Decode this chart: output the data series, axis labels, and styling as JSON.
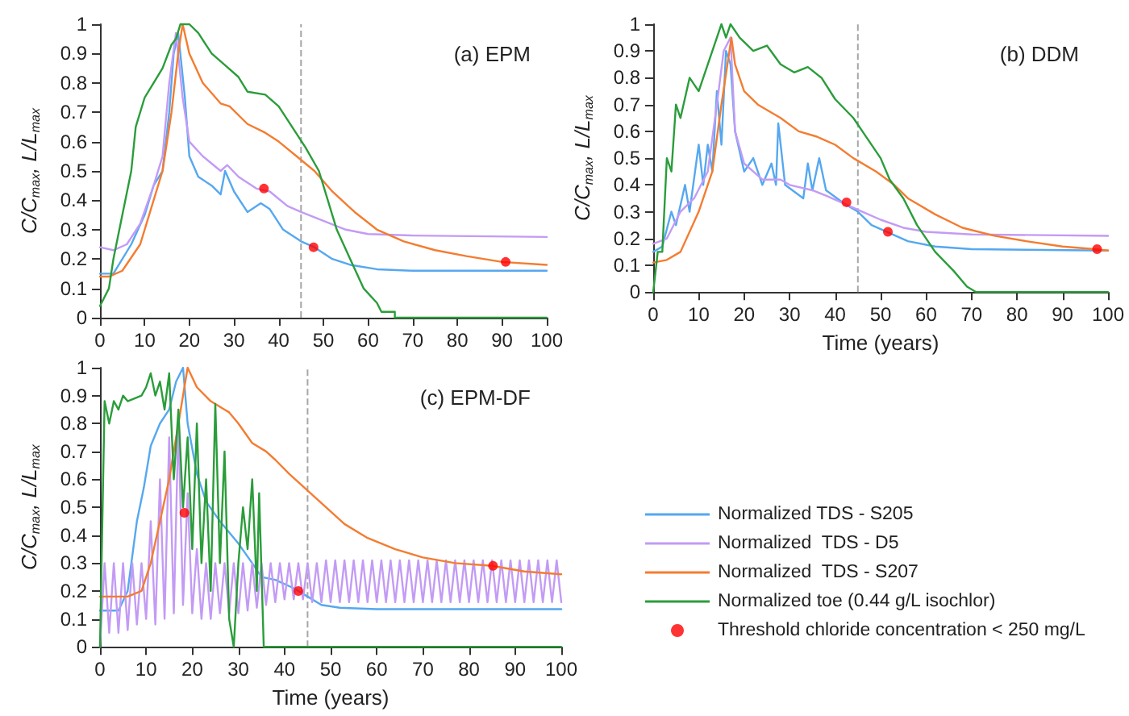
{
  "chart_data": [
    {
      "type": "line",
      "title": "(a) EPM",
      "ylabel": "C/C$_{max}$, L/L$_{max}$",
      "xlim": [
        0,
        100
      ],
      "xticks": [
        0,
        10,
        20,
        30,
        40,
        50,
        60,
        70,
        80,
        90,
        100
      ],
      "ylim": [
        0,
        1
      ],
      "yticks": [
        0,
        0.1,
        0.2,
        0.3,
        0.4,
        0.5,
        0.6,
        0.7,
        0.8,
        0.9,
        1
      ],
      "grid": false,
      "marker": "none",
      "ref_lines": [
        {
          "axis": "x",
          "value": 45,
          "color": "#a6a6a6",
          "line_style": "dashed"
        }
      ],
      "series": [
        {
          "color": "#55a8f0",
          "x": [
            0,
            3,
            7,
            10,
            12,
            14,
            15.5,
            16.5,
            17.5,
            19,
            20,
            22,
            25,
            27,
            28,
            30,
            33,
            36,
            38,
            41,
            45,
            48,
            52,
            56,
            62,
            70,
            100
          ],
          "values": [
            0.15,
            0.15,
            0.25,
            0.35,
            0.45,
            0.5,
            0.7,
            0.9,
            0.97,
            0.75,
            0.55,
            0.48,
            0.45,
            0.42,
            0.5,
            0.43,
            0.36,
            0.39,
            0.37,
            0.3,
            0.26,
            0.24,
            0.2,
            0.18,
            0.165,
            0.16,
            0.16
          ]
        },
        {
          "color": "#c39bf5",
          "x": [
            0,
            3,
            6,
            9,
            12,
            14,
            15.5,
            17,
            18.5,
            20,
            23,
            27,
            28.5,
            31,
            35,
            38,
            42,
            45,
            50,
            55,
            60,
            70,
            100
          ],
          "values": [
            0.24,
            0.23,
            0.25,
            0.32,
            0.45,
            0.55,
            0.8,
            0.97,
            0.75,
            0.6,
            0.55,
            0.5,
            0.52,
            0.48,
            0.44,
            0.43,
            0.38,
            0.36,
            0.33,
            0.3,
            0.285,
            0.28,
            0.275
          ]
        },
        {
          "color": "#f47c30",
          "x": [
            0,
            2,
            5,
            9,
            11,
            14,
            16,
            17.5,
            18.5,
            20,
            23,
            27,
            29,
            33,
            37,
            40,
            44,
            48,
            52,
            57,
            62,
            68,
            75,
            82,
            90,
            100
          ],
          "values": [
            0.14,
            0.14,
            0.16,
            0.25,
            0.35,
            0.5,
            0.7,
            0.9,
            1,
            0.9,
            0.8,
            0.73,
            0.72,
            0.66,
            0.63,
            0.6,
            0.55,
            0.5,
            0.43,
            0.36,
            0.3,
            0.26,
            0.23,
            0.21,
            0.19,
            0.18
          ]
        },
        {
          "color": "#2a9d3a",
          "x": [
            0,
            2,
            3,
            5,
            7,
            8,
            10,
            12,
            14,
            16,
            17,
            18,
            20,
            22,
            25,
            28,
            31,
            33,
            37,
            40,
            43,
            46,
            49,
            51,
            53,
            56,
            59,
            62,
            63,
            66,
            66,
            100
          ],
          "values": [
            0.04,
            0.1,
            0.2,
            0.35,
            0.5,
            0.65,
            0.75,
            0.8,
            0.85,
            0.93,
            0.95,
            1,
            1,
            0.97,
            0.9,
            0.86,
            0.82,
            0.77,
            0.76,
            0.72,
            0.65,
            0.58,
            0.5,
            0.4,
            0.3,
            0.2,
            0.1,
            0.05,
            0.02,
            0.02,
            0,
            0
          ]
        },
        {
          "type": "scatter",
          "color": "#ff0000",
          "marker": "circle",
          "x": [
            36.7,
            47.8,
            90.8
          ],
          "values": [
            0.44,
            0.24,
            0.19
          ]
        }
      ]
    },
    {
      "type": "line",
      "title": "(b) DDM",
      "xlabel": "Time (years)",
      "ylabel": "C/C$_{max}$, L/L$_{max}$",
      "xlim": [
        0,
        100
      ],
      "xticks": [
        0,
        10,
        20,
        30,
        40,
        50,
        60,
        70,
        80,
        90,
        100
      ],
      "ylim": [
        0,
        1
      ],
      "yticks": [
        0,
        0.1,
        0.2,
        0.3,
        0.4,
        0.5,
        0.6,
        0.7,
        0.8,
        0.9,
        1
      ],
      "grid": false,
      "marker": "none",
      "ref_lines": [
        {
          "axis": "x",
          "value": 45,
          "color": "#a6a6a6",
          "line_style": "dashed"
        }
      ],
      "series": [
        {
          "color": "#55a8f0",
          "x": [
            0,
            2,
            4,
            5,
            7,
            8,
            10,
            11,
            12,
            13,
            14,
            15,
            16,
            17,
            18,
            20,
            22,
            24,
            26,
            27,
            27.5,
            29,
            33,
            34,
            35,
            36.5,
            38,
            42,
            45,
            48,
            52,
            56,
            62,
            70,
            100
          ],
          "values": [
            0.15,
            0.17,
            0.3,
            0.25,
            0.4,
            0.3,
            0.55,
            0.4,
            0.55,
            0.45,
            0.75,
            0.55,
            0.9,
            0.85,
            0.6,
            0.45,
            0.5,
            0.4,
            0.48,
            0.4,
            0.63,
            0.4,
            0.35,
            0.48,
            0.38,
            0.5,
            0.38,
            0.33,
            0.3,
            0.25,
            0.22,
            0.19,
            0.17,
            0.16,
            0.155
          ]
        },
        {
          "color": "#c39bf5",
          "x": [
            0,
            3,
            6,
            9,
            12,
            14,
            15.5,
            17,
            18,
            20,
            24,
            28,
            30,
            35,
            38,
            42,
            46,
            50,
            55,
            60,
            70,
            100
          ],
          "values": [
            0.18,
            0.2,
            0.3,
            0.35,
            0.45,
            0.7,
            0.9,
            0.95,
            0.6,
            0.48,
            0.42,
            0.42,
            0.4,
            0.38,
            0.36,
            0.33,
            0.3,
            0.27,
            0.24,
            0.225,
            0.215,
            0.21
          ]
        },
        {
          "color": "#f47c30",
          "x": [
            0,
            3,
            6,
            10,
            13,
            15,
            17.2,
            18,
            20,
            23,
            28,
            32,
            36,
            40,
            44,
            49,
            53,
            56,
            62,
            68,
            75,
            82,
            90,
            97,
            100
          ],
          "values": [
            0.11,
            0.12,
            0.15,
            0.3,
            0.45,
            0.7,
            0.95,
            0.85,
            0.75,
            0.7,
            0.65,
            0.6,
            0.58,
            0.55,
            0.5,
            0.45,
            0.4,
            0.35,
            0.29,
            0.24,
            0.21,
            0.19,
            0.17,
            0.16,
            0.155
          ]
        },
        {
          "color": "#2a9d3a",
          "x": [
            0,
            1,
            2,
            3,
            4,
            5,
            6,
            8,
            10,
            12,
            14,
            15,
            16,
            17,
            19,
            22,
            25,
            28,
            31,
            34,
            37,
            40,
            44,
            46,
            50,
            52,
            55,
            58,
            62,
            66,
            69,
            71,
            100
          ],
          "values": [
            0,
            0.15,
            0.15,
            0.5,
            0.45,
            0.7,
            0.65,
            0.8,
            0.75,
            0.85,
            0.95,
            1,
            0.95,
            1,
            0.95,
            0.9,
            0.92,
            0.85,
            0.82,
            0.84,
            0.8,
            0.72,
            0.65,
            0.6,
            0.5,
            0.42,
            0.35,
            0.25,
            0.15,
            0.08,
            0.02,
            0,
            0
          ]
        },
        {
          "type": "scatter",
          "color": "#ff0000",
          "marker": "circle",
          "x": [
            42.5,
            51.6,
            97.6
          ],
          "values": [
            0.335,
            0.225,
            0.16
          ]
        }
      ]
    },
    {
      "type": "line",
      "title": "(c) EPM-DF",
      "xlabel": "Time (years)",
      "ylabel": "C/C$_{max}$, L/L$_{max}$",
      "xlim": [
        0,
        100
      ],
      "xticks": [
        0,
        10,
        20,
        30,
        40,
        50,
        60,
        70,
        80,
        90,
        100
      ],
      "ylim": [
        0,
        1
      ],
      "yticks": [
        0,
        0.1,
        0.2,
        0.3,
        0.4,
        0.5,
        0.6,
        0.7,
        0.8,
        0.9,
        1
      ],
      "grid": false,
      "marker": "none",
      "legend": "right",
      "ref_lines": [
        {
          "axis": "x",
          "value": 45,
          "color": "#a6a6a6",
          "line_style": "dashed"
        }
      ],
      "series": [
        {
          "name": "Normalized TDS - S205",
          "color": "#55a8f0",
          "x": [
            0,
            4,
            6,
            8,
            9.5,
            11,
            13,
            15,
            16.5,
            18,
            19,
            21,
            23,
            26,
            30,
            33,
            35,
            38,
            42,
            45,
            48,
            52,
            60,
            100
          ],
          "values": [
            0.13,
            0.13,
            0.2,
            0.45,
            0.57,
            0.72,
            0.8,
            0.85,
            0.95,
            1,
            0.8,
            0.62,
            0.52,
            0.45,
            0.37,
            0.3,
            0.25,
            0.24,
            0.21,
            0.18,
            0.15,
            0.14,
            0.135,
            0.135
          ]
        },
        {
          "name": "Normalized  TDS - D5",
          "color": "#c39bf5",
          "x": [
            0,
            1,
            2,
            3,
            4,
            5,
            6,
            7,
            8,
            9,
            10,
            11,
            12,
            13,
            14,
            15,
            16,
            17,
            18,
            19,
            20,
            21,
            22,
            23,
            24,
            25,
            26,
            27,
            28,
            29,
            30,
            31,
            32,
            33,
            34,
            35,
            36,
            37,
            38,
            39,
            40,
            41,
            42,
            43,
            44,
            45,
            46,
            47,
            48,
            49,
            50,
            51,
            52,
            53,
            54,
            55,
            56,
            57,
            58,
            59,
            60,
            61,
            62,
            63,
            64,
            65,
            66,
            67,
            68,
            69,
            70,
            71,
            72,
            73,
            74,
            75,
            76,
            77,
            78,
            79,
            80,
            81,
            82,
            83,
            84,
            85,
            86,
            87,
            88,
            89,
            90,
            91,
            92,
            93,
            94,
            95,
            96,
            97,
            98,
            99,
            100
          ],
          "values": [
            0,
            0.3,
            0.05,
            0.3,
            0.05,
            0.3,
            0.06,
            0.3,
            0.08,
            0.3,
            0.1,
            0.45,
            0.08,
            0.6,
            0.1,
            0.75,
            0.12,
            0.8,
            0.15,
            0.55,
            0.12,
            0.35,
            0.1,
            0.3,
            0.1,
            0.3,
            0.12,
            0.3,
            0.12,
            0.3,
            0.12,
            0.3,
            0.13,
            0.3,
            0.14,
            0.3,
            0.15,
            0.3,
            0.16,
            0.3,
            0.17,
            0.3,
            0.17,
            0.3,
            0.17,
            0.3,
            0.16,
            0.3,
            0.16,
            0.31,
            0.16,
            0.31,
            0.16,
            0.31,
            0.16,
            0.31,
            0.16,
            0.31,
            0.16,
            0.31,
            0.16,
            0.31,
            0.16,
            0.31,
            0.16,
            0.31,
            0.16,
            0.31,
            0.16,
            0.31,
            0.16,
            0.31,
            0.16,
            0.31,
            0.16,
            0.31,
            0.16,
            0.31,
            0.16,
            0.31,
            0.16,
            0.31,
            0.16,
            0.31,
            0.16,
            0.31,
            0.16,
            0.31,
            0.16,
            0.31,
            0.16,
            0.31,
            0.16,
            0.31,
            0.16,
            0.31,
            0.16,
            0.31,
            0.16,
            0.31,
            0.16
          ]
        },
        {
          "name": "Normalized  TDS - S207",
          "color": "#f47c30",
          "x": [
            0,
            6,
            9,
            11,
            13,
            15,
            17,
            18.5,
            19,
            21,
            24,
            27,
            28,
            30,
            33,
            36,
            38,
            41,
            45,
            49,
            53,
            58,
            64,
            70,
            77,
            85,
            92,
            100
          ],
          "values": [
            0.18,
            0.18,
            0.2,
            0.3,
            0.45,
            0.6,
            0.8,
            0.95,
            1,
            0.93,
            0.88,
            0.85,
            0.84,
            0.8,
            0.73,
            0.7,
            0.67,
            0.62,
            0.56,
            0.5,
            0.44,
            0.39,
            0.35,
            0.32,
            0.3,
            0.29,
            0.27,
            0.26
          ]
        },
        {
          "name": "Normalized toe (0.44 g/L isochlor)",
          "color": "#2a9d3a",
          "x": [
            0,
            1,
            2,
            3,
            4,
            5,
            6,
            9,
            10,
            11,
            12,
            13,
            14,
            15,
            16,
            17,
            18,
            19,
            20,
            21,
            22,
            23,
            24,
            25,
            26,
            27,
            28,
            29,
            30,
            31,
            32,
            33,
            34,
            34.5,
            35.5,
            100
          ],
          "values": [
            0,
            0.88,
            0.8,
            0.88,
            0.85,
            0.9,
            0.88,
            0.9,
            0.93,
            0.98,
            0.9,
            0.95,
            0.85,
            0.98,
            0.6,
            0.85,
            0.5,
            0.75,
            0.35,
            0.8,
            0.3,
            0.6,
            0.2,
            0.87,
            0.3,
            0.7,
            0.1,
            0,
            0.3,
            0.5,
            0.35,
            0.6,
            0.2,
            0.55,
            0,
            0
          ]
        },
        {
          "type": "scatter",
          "name": "Threshold chloride concentration < 250 mg/L",
          "color": "#ff0000",
          "marker": "circle",
          "x": [
            18.3,
            43,
            85.2
          ],
          "values": [
            0.48,
            0.2,
            0.29
          ]
        }
      ]
    }
  ]
}
